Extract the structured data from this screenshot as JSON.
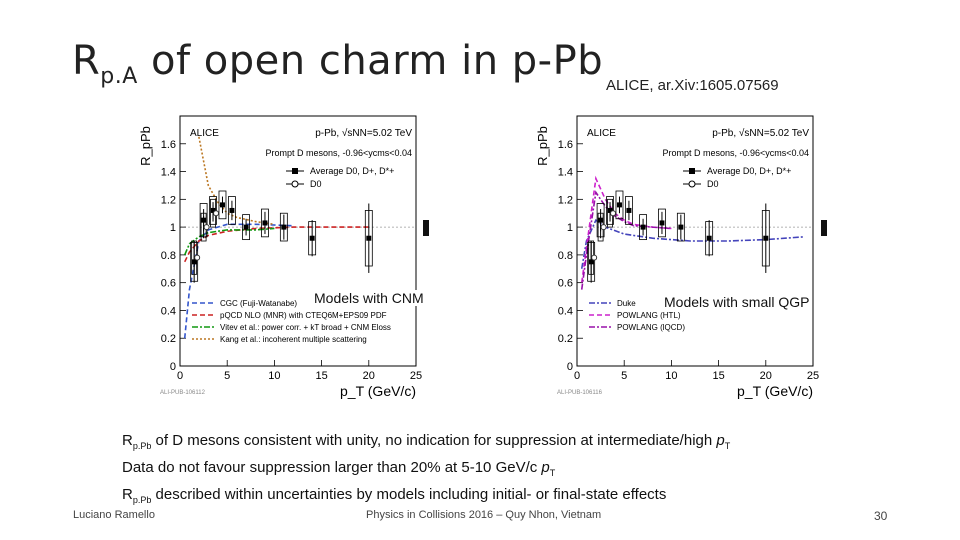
{
  "slide": {
    "title_main": "R",
    "title_sub": "p.A",
    "title_rest": " of open charm in p-Pb",
    "citation": "ALICE, ar.Xiv:1605.07569",
    "caption_left": "Models with CNM",
    "caption_right": "Models with small QGP",
    "bullet1_a": "R",
    "bullet1_sub": "p.Pb",
    "bullet1_b": " of D mesons consistent with unity, no indication for suppression at intermediate/high ",
    "bullet1_pt": "p",
    "bullet1_pt_sub": "T",
    "bullet2_a": "Data do not favour suppression larger than 20% at 5-10 GeV/c ",
    "bullet2_pt": "p",
    "bullet2_pt_sub": "T",
    "bullet3_a": "R",
    "bullet3_sub": "p.Pb",
    "bullet3_b": " described within uncertainties by models including initial- or final-state effects",
    "footer_author": "Luciano Ramello",
    "footer_conf": "Physics in Collisions 2016 – Quy Nhon, Vietnam",
    "footer_page": "30"
  },
  "chart_data": [
    {
      "type": "scatter",
      "panel": "left",
      "ylabel": "R_pPb",
      "xlabel": "p_T (GeV/c)",
      "xlim": [
        0,
        25
      ],
      "ylim": [
        0,
        1.8
      ],
      "xticks": [
        0,
        5,
        10,
        15,
        20,
        25
      ],
      "yticks": [
        0,
        0.2,
        0.4,
        0.6,
        0.8,
        1,
        1.2,
        1.4,
        1.6
      ],
      "ytick_labels": [
        "0",
        "0.2",
        "0.4",
        "0.6",
        "0.8",
        "1",
        "1.2",
        "1.4",
        "1.6"
      ],
      "experiment_label": "ALICE",
      "system_label": "p-Pb, √sNN=5.02 TeV",
      "selection_label": "Prompt D mesons, -0.96<ycms<0.04",
      "watermark": "ALI-PUB-106112",
      "legend_entries": [
        "Average D0, D+, D*+",
        "D0"
      ],
      "series": [
        {
          "name": "Average D0, D+, D*+",
          "color": "#000000",
          "x": [
            1.5,
            2.5,
            3.5,
            4.5,
            5.5,
            7,
            9,
            11,
            14,
            20
          ],
          "y": [
            0.75,
            1.05,
            1.12,
            1.16,
            1.12,
            1.0,
            1.03,
            1.0,
            0.92,
            0.92
          ],
          "stat_err": [
            0.15,
            0.08,
            0.06,
            0.06,
            0.07,
            0.06,
            0.08,
            0.09,
            0.13,
            0.25
          ],
          "syst_err": [
            0.14,
            0.12,
            0.1,
            0.1,
            0.1,
            0.09,
            0.1,
            0.1,
            0.12,
            0.2
          ]
        },
        {
          "name": "D0",
          "color": "#555555",
          "x": [
            1.5,
            2.5,
            3.5
          ],
          "y": [
            0.78,
            1.0,
            1.1
          ],
          "stat_err": [
            0.12,
            0.08,
            0.06
          ],
          "syst_err": [
            0.12,
            0.1,
            0.1
          ]
        }
      ],
      "models": [
        {
          "name": "CGC (Fuji-Watanabe)",
          "color": "#3355cc",
          "style": "dashed",
          "x": [
            0.5,
            1,
            2,
            3,
            5,
            8,
            12
          ],
          "y": [
            0.2,
            0.55,
            0.9,
            0.98,
            1.02,
            1.02,
            1.01
          ]
        },
        {
          "name": "pQCD NLO (MNR) with CTEQ6M+EPS09 PDF",
          "color": "#cc2222",
          "style": "dashed",
          "x": [
            0.5,
            1,
            2,
            3,
            5,
            8,
            12,
            16,
            20
          ],
          "y": [
            0.75,
            0.82,
            0.9,
            0.94,
            0.97,
            0.99,
            1.0,
            1.0,
            1.0
          ]
        },
        {
          "name": "Vitev et al.: power corr. + kT broad + CNM Eloss",
          "color": "#119911",
          "style": "dashdot",
          "x": [
            0.5,
            1,
            2,
            3,
            5,
            8,
            10
          ],
          "y": [
            0.8,
            0.88,
            0.93,
            0.96,
            0.98,
            0.98,
            0.99
          ]
        },
        {
          "name": "Kang et al.: incoherent multiple scattering",
          "color": "#bb7722",
          "style": "dotted",
          "x": [
            2,
            3,
            4,
            5,
            6,
            8,
            10
          ],
          "y": [
            1.65,
            1.3,
            1.18,
            1.1,
            1.07,
            1.04,
            1.02
          ]
        }
      ]
    },
    {
      "type": "scatter",
      "panel": "right",
      "ylabel": "R_pPb",
      "xlabel": "p_T (GeV/c)",
      "xlim": [
        0,
        25
      ],
      "ylim": [
        0,
        1.8
      ],
      "xticks": [
        0,
        5,
        10,
        15,
        20,
        25
      ],
      "yticks": [
        0,
        0.2,
        0.4,
        0.6,
        0.8,
        1,
        1.2,
        1.4,
        1.6
      ],
      "ytick_labels": [
        "0",
        "0.2",
        "0.4",
        "0.6",
        "0.8",
        "1",
        "1.2",
        "1.4",
        "1.6"
      ],
      "experiment_label": "ALICE",
      "system_label": "p-Pb, √sNN=5.02 TeV",
      "selection_label": "Prompt D mesons, -0.96<ycms<0.04",
      "watermark": "ALI-PUB-106116",
      "legend_entries": [
        "Average D0, D+, D*+",
        "D0"
      ],
      "series": [
        {
          "name": "Average D0, D+, D*+",
          "color": "#000000",
          "x": [
            1.5,
            2.5,
            3.5,
            4.5,
            5.5,
            7,
            9,
            11,
            14,
            20
          ],
          "y": [
            0.75,
            1.05,
            1.12,
            1.16,
            1.12,
            1.0,
            1.03,
            1.0,
            0.92,
            0.92
          ],
          "stat_err": [
            0.15,
            0.08,
            0.06,
            0.06,
            0.07,
            0.06,
            0.08,
            0.09,
            0.13,
            0.25
          ],
          "syst_err": [
            0.14,
            0.12,
            0.1,
            0.1,
            0.1,
            0.09,
            0.1,
            0.1,
            0.12,
            0.2
          ]
        },
        {
          "name": "D0",
          "color": "#555555",
          "x": [
            1.5,
            2.5,
            3.5
          ],
          "y": [
            0.78,
            1.0,
            1.1
          ],
          "stat_err": [
            0.12,
            0.08,
            0.06
          ],
          "syst_err": [
            0.12,
            0.1,
            0.1
          ]
        }
      ],
      "models": [
        {
          "name": "Duke",
          "color": "#4444bb",
          "style": "dashdot",
          "x": [
            0.5,
            1,
            2,
            3,
            5,
            8,
            12,
            16,
            20,
            24
          ],
          "y": [
            0.7,
            0.9,
            1.05,
            1.0,
            0.95,
            0.92,
            0.9,
            0.9,
            0.91,
            0.93
          ]
        },
        {
          "name": "POWLANG (HTL)",
          "color": "#cc22cc",
          "style": "dashed",
          "x": [
            0.5,
            1,
            2,
            3,
            4,
            5,
            6,
            8,
            10
          ],
          "y": [
            0.6,
            0.85,
            1.35,
            1.2,
            1.1,
            1.05,
            1.02,
            1.0,
            0.99
          ]
        },
        {
          "name": "POWLANG (lQCD)",
          "color": "#9911aa",
          "style": "dashdot",
          "x": [
            0.5,
            1,
            2,
            3,
            4,
            5,
            6,
            8,
            10
          ],
          "y": [
            0.55,
            0.8,
            1.25,
            1.15,
            1.08,
            1.04,
            1.01,
            1.0,
            0.99
          ]
        }
      ]
    }
  ]
}
